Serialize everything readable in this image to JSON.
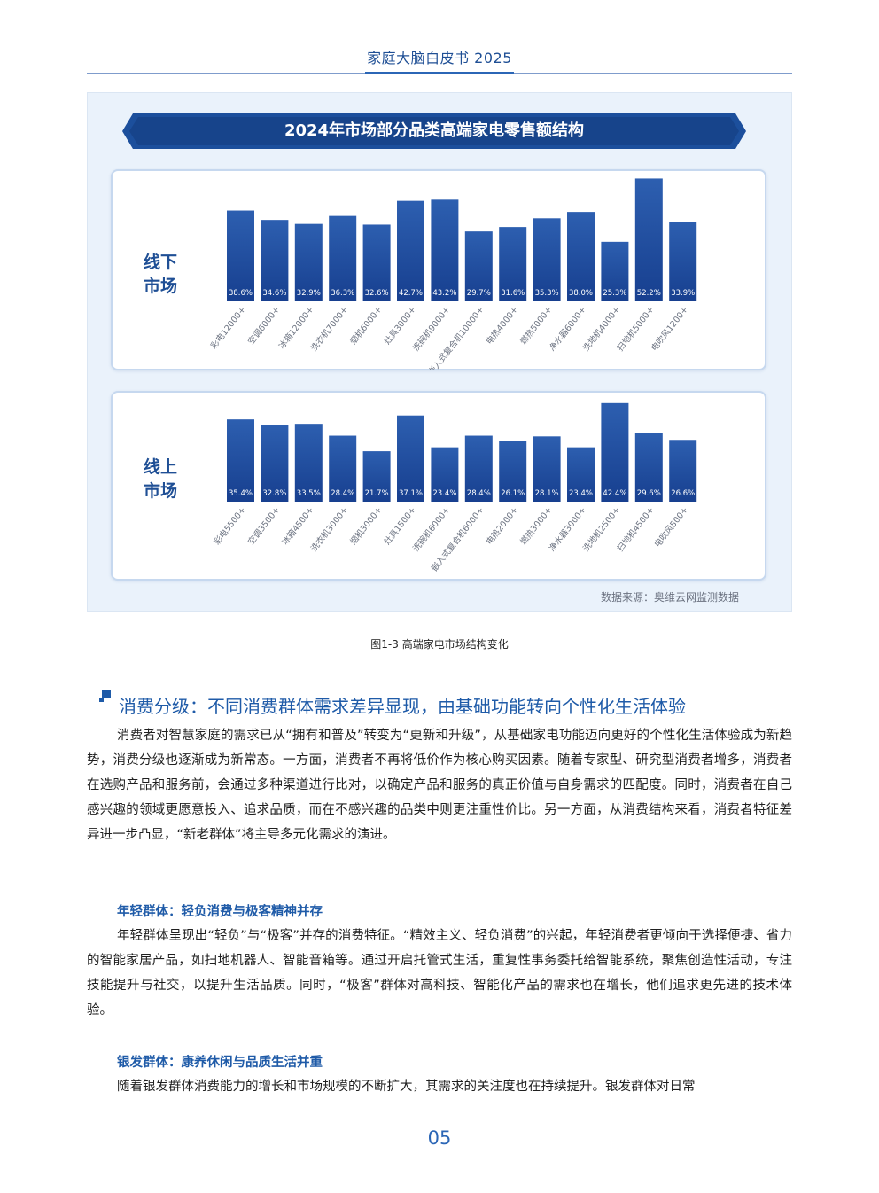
{
  "header": {
    "title": "家庭大脑白皮书 2025"
  },
  "figure": {
    "title": "2024年市场部分品类高端家电零售额结构",
    "source": "数据来源：奥维云网监测数据",
    "caption": "图1-3 高端家电市场结构变化"
  },
  "chart_data": [
    {
      "type": "bar",
      "panel_label": "线下\n市场",
      "categories": [
        "彩电12000+",
        "空调6000+",
        "冰箱12000+",
        "洗衣机7000+",
        "烟机6000+",
        "灶具3000+",
        "洗碗机9000+",
        "嵌入式复合机10000+",
        "电热4000+",
        "燃热5000+",
        "净水器6000+",
        "洗地机4000+",
        "扫地机5000+",
        "电吹风1200+"
      ],
      "values": [
        38.6,
        34.6,
        32.9,
        36.3,
        32.6,
        42.7,
        43.2,
        29.7,
        31.6,
        35.3,
        38.0,
        25.3,
        52.2,
        33.9
      ],
      "labels": [
        "38.6%",
        "34.6%",
        "32.9%",
        "36.3%",
        "32.6%",
        "42.7%",
        "43.2%",
        "29.7%",
        "31.6%",
        "35.3%",
        "38.0%",
        "25.3%",
        "52.2%",
        "33.9%"
      ],
      "ylim": [
        0,
        55
      ],
      "color": "#1f4fa0"
    },
    {
      "type": "bar",
      "panel_label": "线上\n市场",
      "categories": [
        "彩电5500+",
        "空调3500+",
        "冰箱4500+",
        "洗衣机3000+",
        "烟机3000+",
        "灶具1500+",
        "洗碗机6000+",
        "嵌入式复合机6000+",
        "电热2000+",
        "燃热3000+",
        "净水器3000+",
        "洗地机2500+",
        "扫地机4500+",
        "电吹风500+"
      ],
      "values": [
        35.4,
        32.8,
        33.5,
        28.4,
        21.7,
        37.1,
        23.4,
        28.4,
        26.1,
        28.1,
        23.4,
        42.4,
        29.6,
        26.6
      ],
      "labels": [
        "35.4%",
        "32.8%",
        "33.5%",
        "28.4%",
        "21.7%",
        "37.1%",
        "23.4%",
        "28.4%",
        "26.1%",
        "28.1%",
        "23.4%",
        "42.4%",
        "29.6%",
        "26.6%"
      ],
      "ylim": [
        0,
        45
      ],
      "color": "#17469a"
    }
  ],
  "section": {
    "heading": "消费分级：不同消费群体需求差异显现，由基础功能转向个性化生活体验",
    "para1": "消费者对智慧家庭的需求已从“拥有和普及”转变为“更新和升级”，从基础家电功能迈向更好的个性化生活体验成为新趋势，消费分级也逐渐成为新常态。一方面，消费者不再将低价作为核心购买因素。随着专家型、研究型消费者增多，消费者在选购产品和服务前，会通过多种渠道进行比对，以确定产品和服务的真正价值与自身需求的匹配度。同时，消费者在自己感兴趣的领域更愿意投入、追求品质，而在不感兴趣的品类中则更注重性价比。另一方面，从消费结构来看，消费者特征差异进一步凸显，“新老群体”将主导多元化需求的演进。",
    "sub1": "年轻群体：轻负消费与极客精神并存",
    "para2": "年轻群体呈现出“轻负”与“极客”并存的消费特征。“精效主义、轻负消费”的兴起，年轻消费者更倾向于选择便捷、省力的智能家居产品，如扫地机器人、智能音箱等。通过开启托管式生活，重复性事务委托给智能系统，聚焦创造性活动，专注技能提升与社交，以提升生活品质。同时，“极客”群体对高科技、智能化产品的需求也在增长，他们追求更先进的技术体验。",
    "sub2": "银发群体：康养休闲与品质生活并重",
    "para3": "随着银发群体消费能力的增长和市场规模的不断扩大，其需求的关注度也在持续提升。银发群体对日常"
  },
  "footer": {
    "page_number": "05"
  }
}
